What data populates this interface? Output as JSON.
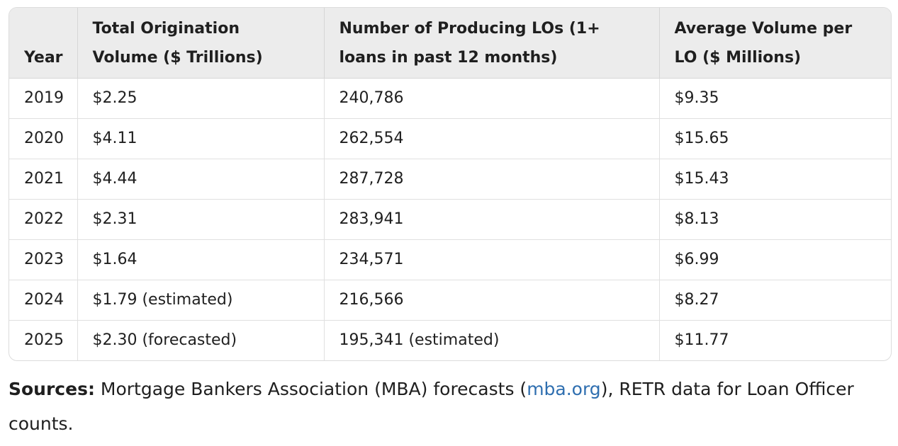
{
  "table": {
    "headers": [
      "Year",
      "Total Origination Volume ($ Trillions)",
      "Number of Producing LOs (1+ loans in past 12 months)",
      "Average Volume per LO ($ Millions)"
    ],
    "rows": [
      [
        "2019",
        "$2.25",
        "240,786",
        "$9.35"
      ],
      [
        "2020",
        "$4.11",
        "262,554",
        "$15.65"
      ],
      [
        "2021",
        "$4.44",
        "287,728",
        "$15.43"
      ],
      [
        "2022",
        "$2.31",
        "283,941",
        "$8.13"
      ],
      [
        "2023",
        "$1.64",
        "234,571",
        "$6.99"
      ],
      [
        "2024",
        "$1.79 (estimated)",
        "216,566",
        "$8.27"
      ],
      [
        "2025",
        "$2.30 (forecasted)",
        "195,341 (estimated)",
        "$11.77"
      ]
    ]
  },
  "sources": {
    "label": "Sources:",
    "text_before": " Mortgage Bankers Association (MBA) forecasts (",
    "link": "mba.org",
    "text_after": "), RETR data for Loan Officer counts."
  },
  "colors": {
    "header_bg": "#ececec",
    "border": "#dcdcdc",
    "link": "#2f6fb0",
    "text": "#1f1f1f"
  }
}
